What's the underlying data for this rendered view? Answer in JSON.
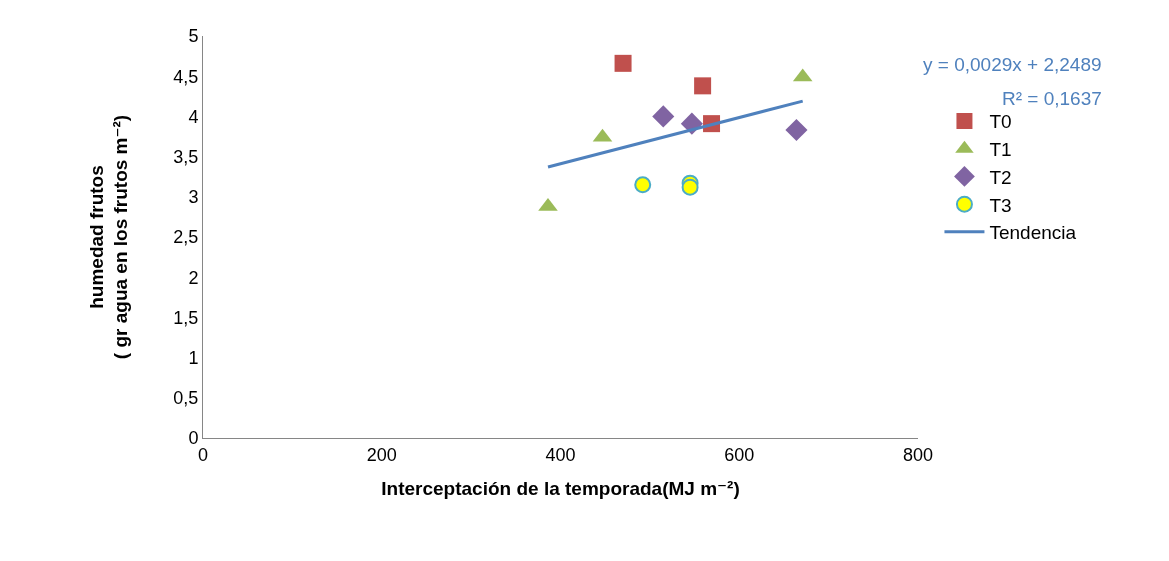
{
  "chart_data": {
    "type": "scatter",
    "xlabel": "Interceptación de la temporada(MJ m⁻²)",
    "ylabel": "humedad frutos\n( gr agua en los frutos m⁻²)",
    "series": [
      {
        "name": "T0",
        "color": "#c0504d",
        "marker": "square",
        "x": [
          470,
          559,
          569
        ],
        "values": [
          4.66,
          4.38,
          3.91
        ]
      },
      {
        "name": "T1",
        "color": "#9bbb59",
        "marker": "triangle",
        "x": [
          386,
          447,
          671
        ],
        "values": [
          2.88,
          3.74,
          4.49
        ]
      },
      {
        "name": "T2",
        "color": "#8064a2",
        "marker": "diamond",
        "x": [
          515,
          547,
          664
        ],
        "values": [
          4.0,
          3.91,
          3.83
        ]
      },
      {
        "name": "T3",
        "color": "#ffff00",
        "marker": "circle",
        "x": [
          492,
          545,
          545
        ],
        "values": [
          3.15,
          3.17,
          3.12
        ]
      },
      {
        "name": "Tendencia",
        "type": "line",
        "color": "#4f81bd",
        "marker": "none",
        "x": [
          386,
          671
        ],
        "values": [
          3.37,
          4.19
        ]
      }
    ],
    "xlim": [
      0,
      800
    ],
    "xticks": [
      0,
      200,
      400,
      600,
      800
    ],
    "ylim": [
      0,
      5
    ],
    "yticks": [
      0,
      {
        "value": 0.5,
        "label": "0,5"
      },
      1,
      {
        "value": 1.5,
        "label": "1,5"
      },
      2,
      {
        "value": 2.5,
        "label": "2,5"
      },
      3,
      {
        "value": 3.5,
        "label": "3,5"
      },
      4,
      {
        "value": 4.5,
        "label": "4,5"
      },
      5
    ],
    "grid": false,
    "legend": "right",
    "annotations": [
      "y = 0,0029x + 2,2489",
      "R² = 0,1637"
    ]
  }
}
